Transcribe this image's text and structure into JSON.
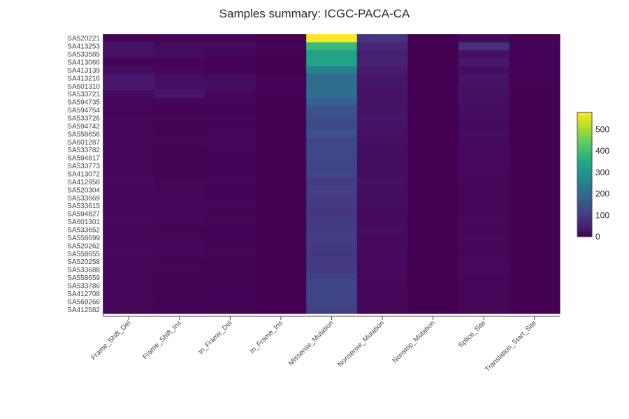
{
  "chart_data": {
    "type": "heatmap",
    "title": "Samples summary: ICGC-PACA-CA",
    "xlabel": "",
    "ylabel": "",
    "colorscale": "viridis",
    "zlim": [
      0,
      580
    ],
    "colorbar_ticks": [
      0,
      100,
      200,
      300,
      400,
      500
    ],
    "x": [
      "Frame_Shift_Del",
      "Frame_Shift_Ins",
      "In_Frame_Del",
      "In_Frame_Ins",
      "Missense_Mutation",
      "Nonsense_Mutation",
      "Nonstop_Mutation",
      "Splice_Site",
      "Translation_Start_Site"
    ],
    "y": [
      "SA520221",
      "SA413253",
      "SA533585",
      "SA413066",
      "SA413139",
      "SA413216",
      "SA601310",
      "SA533721",
      "SA594735",
      "SA594754",
      "SA533726",
      "SA594742",
      "SA558656",
      "SA601287",
      "SA533782",
      "SA594817",
      "SA533773",
      "SA413072",
      "SA412958",
      "SA520304",
      "SA533669",
      "SA533615",
      "SA594827",
      "SA601301",
      "SA533652",
      "SA558699",
      "SA520262",
      "SA558655",
      "SA520258",
      "SA533688",
      "SA558659",
      "SA533786",
      "SA412708",
      "SA569266",
      "SA412582"
    ],
    "z": [
      [
        5,
        5,
        5,
        2,
        580,
        85,
        0,
        10,
        2
      ],
      [
        30,
        15,
        15,
        3,
        390,
        60,
        0,
        80,
        8
      ],
      [
        25,
        20,
        10,
        3,
        330,
        50,
        0,
        25,
        4
      ],
      [
        5,
        5,
        5,
        2,
        340,
        55,
        0,
        40,
        3
      ],
      [
        20,
        10,
        5,
        2,
        255,
        45,
        0,
        20,
        3
      ],
      [
        40,
        20,
        15,
        3,
        205,
        35,
        0,
        30,
        3
      ],
      [
        40,
        25,
        20,
        3,
        200,
        35,
        0,
        25,
        3
      ],
      [
        15,
        35,
        10,
        3,
        215,
        30,
        0,
        25,
        2
      ],
      [
        10,
        8,
        8,
        2,
        175,
        30,
        0,
        25,
        2
      ],
      [
        8,
        6,
        5,
        2,
        145,
        30,
        0,
        20,
        2
      ],
      [
        10,
        8,
        8,
        2,
        140,
        35,
        0,
        20,
        2
      ],
      [
        8,
        6,
        5,
        2,
        130,
        30,
        0,
        15,
        2
      ],
      [
        8,
        6,
        8,
        2,
        145,
        25,
        0,
        20,
        2
      ],
      [
        10,
        8,
        12,
        2,
        120,
        25,
        0,
        15,
        2
      ],
      [
        8,
        6,
        5,
        2,
        120,
        20,
        0,
        15,
        2
      ],
      [
        8,
        6,
        5,
        2,
        120,
        20,
        0,
        15,
        2
      ],
      [
        8,
        6,
        5,
        2,
        115,
        20,
        0,
        15,
        2
      ],
      [
        8,
        6,
        5,
        2,
        120,
        20,
        0,
        12,
        2
      ],
      [
        15,
        10,
        8,
        2,
        100,
        25,
        0,
        10,
        2
      ],
      [
        10,
        8,
        5,
        2,
        110,
        20,
        0,
        10,
        2
      ],
      [
        8,
        8,
        5,
        2,
        100,
        20,
        0,
        10,
        2
      ],
      [
        10,
        8,
        8,
        2,
        95,
        20,
        0,
        10,
        2
      ],
      [
        10,
        8,
        6,
        2,
        90,
        15,
        0,
        10,
        2
      ],
      [
        15,
        10,
        8,
        2,
        100,
        15,
        0,
        12,
        2
      ],
      [
        8,
        6,
        5,
        2,
        95,
        20,
        0,
        10,
        2
      ],
      [
        10,
        8,
        5,
        2,
        105,
        15,
        0,
        12,
        2
      ],
      [
        10,
        8,
        6,
        2,
        100,
        15,
        0,
        10,
        2
      ],
      [
        15,
        10,
        8,
        2,
        90,
        12,
        0,
        10,
        2
      ],
      [
        8,
        6,
        5,
        2,
        100,
        15,
        0,
        12,
        2
      ],
      [
        10,
        8,
        6,
        2,
        100,
        12,
        0,
        15,
        2
      ],
      [
        8,
        6,
        5,
        2,
        115,
        12,
        0,
        10,
        2
      ],
      [
        8,
        6,
        5,
        2,
        120,
        10,
        0,
        10,
        2
      ],
      [
        8,
        6,
        5,
        2,
        115,
        10,
        0,
        10,
        2
      ],
      [
        8,
        6,
        5,
        2,
        120,
        10,
        0,
        10,
        2
      ],
      [
        8,
        6,
        5,
        2,
        105,
        10,
        0,
        10,
        2
      ]
    ]
  }
}
